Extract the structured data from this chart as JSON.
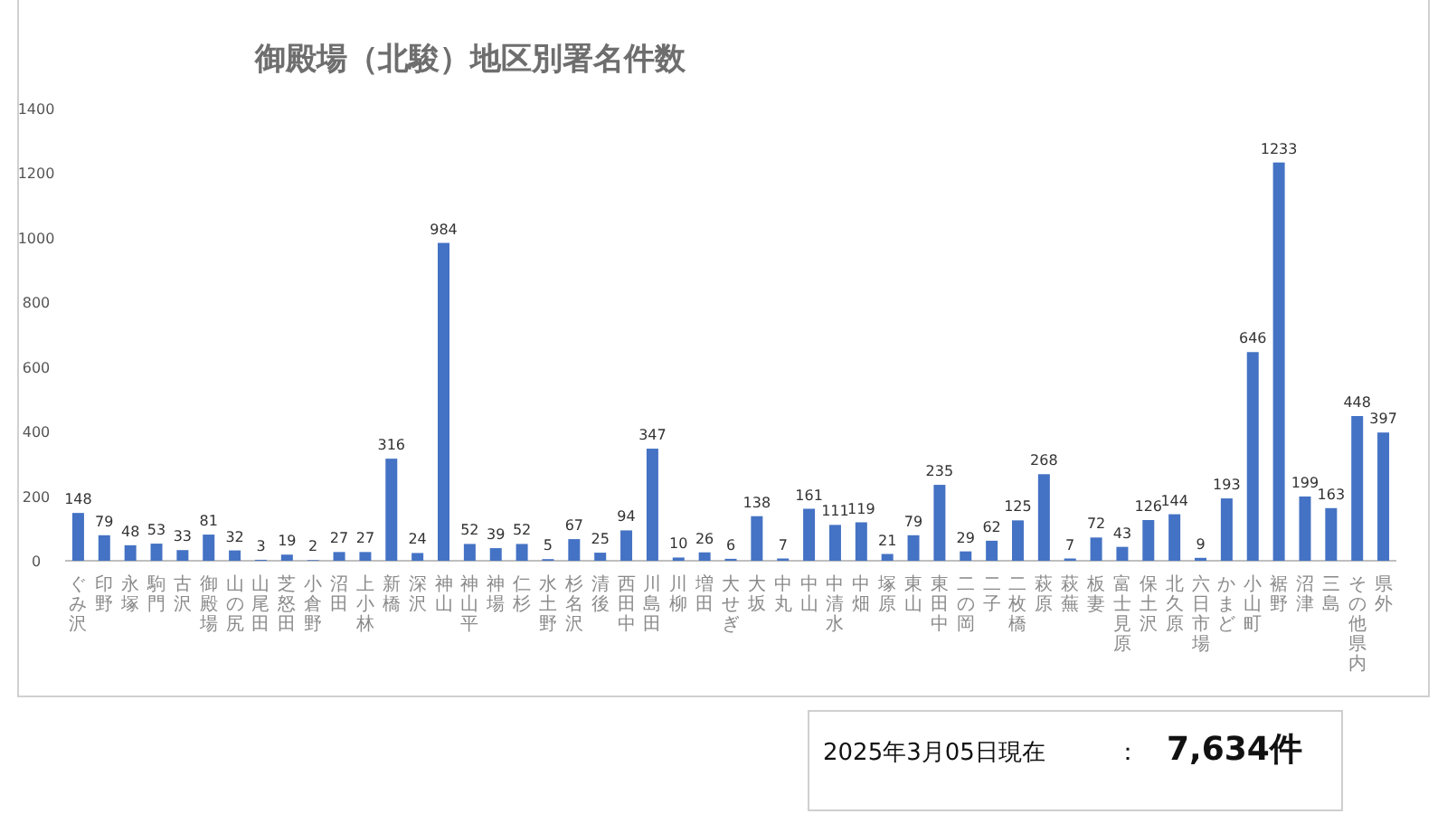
{
  "chart_data": {
    "type": "bar",
    "title": "御殿場（北駿）地区別署名件数",
    "categories": [
      "ぐみ沢",
      "印野",
      "永塚",
      "駒門",
      "古沢",
      "御殿場",
      "山の尻",
      "山尾田",
      "芝怒田",
      "小倉野",
      "沼田",
      "上小林",
      "新橋",
      "深沢",
      "神山",
      "神山平",
      "神場",
      "仁杉",
      "水土野",
      "杉名沢",
      "清後",
      "西田中",
      "川島田",
      "川柳",
      "増田",
      "大せぎ",
      "大坂",
      "中丸",
      "中山",
      "中清水",
      "中畑",
      "塚原",
      "東山",
      "東田中",
      "二の岡",
      "二子",
      "二枚橋",
      "萩原",
      "萩蕪",
      "板妻",
      "富士見原",
      "保土沢",
      "北久原",
      "六日市場",
      "かまど",
      "小山町",
      "裾野",
      "沼津",
      "三島",
      "その他県内",
      "県外"
    ],
    "values": [
      148,
      79,
      48,
      53,
      33,
      81,
      32,
      3,
      19,
      2,
      27,
      27,
      316,
      24,
      984,
      52,
      39,
      52,
      5,
      67,
      25,
      94,
      347,
      10,
      26,
      6,
      138,
      7,
      161,
      111,
      119,
      21,
      79,
      235,
      29,
      62,
      125,
      268,
      7,
      72,
      43,
      126,
      144,
      9,
      193,
      646,
      1233,
      199,
      163,
      448,
      397
    ],
    "color": "#4472c4",
    "ylim": [
      0,
      1400
    ],
    "yticks": [
      0,
      200,
      400,
      600,
      800,
      1000,
      1200,
      1400
    ],
    "data_labels": true,
    "grid": false,
    "annotations": [
      "2025年3月05日現在",
      "：",
      "7,634件"
    ]
  }
}
